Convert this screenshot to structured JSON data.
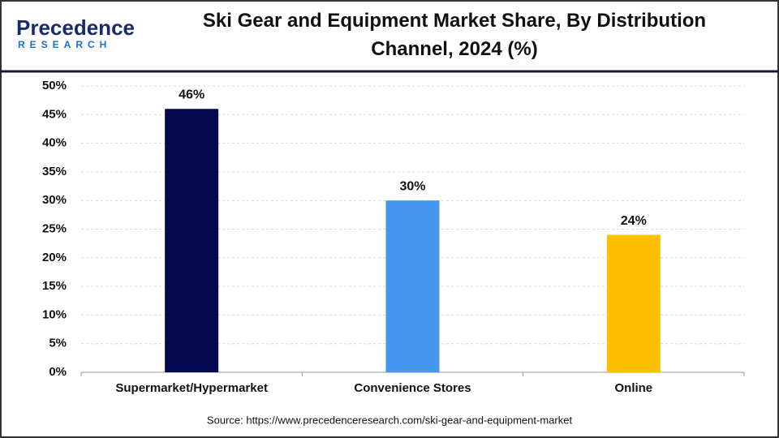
{
  "logo": {
    "name": "Precedence",
    "tagline": "RESEARCH"
  },
  "chart_data": {
    "type": "bar",
    "title": "Ski Gear and Equipment Market Share, By Distribution Channel, 2024 (%)",
    "categories": [
      "Supermarket/Hypermarket",
      "Convenience Stores",
      "Online"
    ],
    "values": [
      46,
      30,
      24
    ],
    "value_labels": [
      "46%",
      "30%",
      "24%"
    ],
    "colors": [
      "#03084f",
      "#4596ef",
      "#fdbf00"
    ],
    "ylim": [
      0,
      50
    ],
    "yticks": [
      {
        "value": 0,
        "label": "0%"
      },
      {
        "value": 5,
        "label": "5%"
      },
      {
        "value": 10,
        "label": "10%"
      },
      {
        "value": 15,
        "label": "15%"
      },
      {
        "value": 20,
        "label": "20%"
      },
      {
        "value": 25,
        "label": "25%"
      },
      {
        "value": 30,
        "label": "30%"
      },
      {
        "value": 35,
        "label": "35%"
      },
      {
        "value": 40,
        "label": "40%"
      },
      {
        "value": 45,
        "label": "45%"
      },
      {
        "value": 50,
        "label": "50%"
      }
    ],
    "grid": true,
    "source": "Source: https://www.precedenceresearch.com/ski-gear-and-equipment-market"
  }
}
